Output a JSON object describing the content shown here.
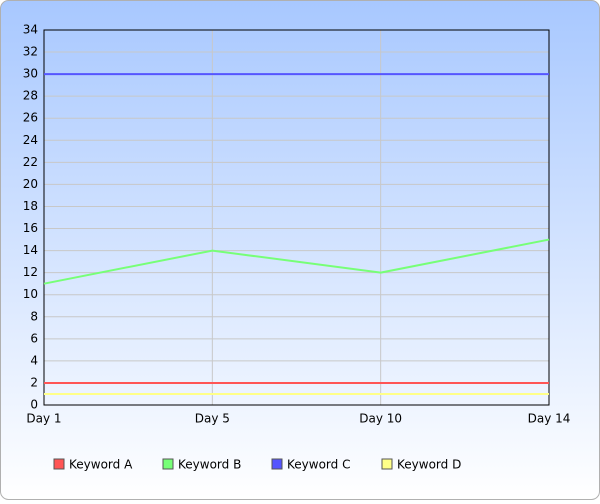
{
  "chart_data": {
    "type": "line",
    "categories": [
      "Day 1",
      "Day 5",
      "Day 10",
      "Day 14"
    ],
    "series": [
      {
        "name": "Keyword A",
        "color": "#ff5555",
        "values": [
          2,
          2,
          2,
          2
        ]
      },
      {
        "name": "Keyword B",
        "color": "#77ff77",
        "values": [
          11,
          14,
          12,
          15
        ]
      },
      {
        "name": "Keyword C",
        "color": "#5555ff",
        "values": [
          30,
          30,
          30,
          30
        ]
      },
      {
        "name": "Keyword D",
        "color": "#ffff88",
        "values": [
          1,
          1,
          1,
          1
        ]
      }
    ],
    "ylim": [
      0,
      34
    ],
    "yticks": [
      0,
      2,
      4,
      6,
      8,
      10,
      12,
      14,
      16,
      18,
      20,
      22,
      24,
      26,
      28,
      30,
      32,
      34
    ],
    "grid": true,
    "legend": "bottom"
  }
}
